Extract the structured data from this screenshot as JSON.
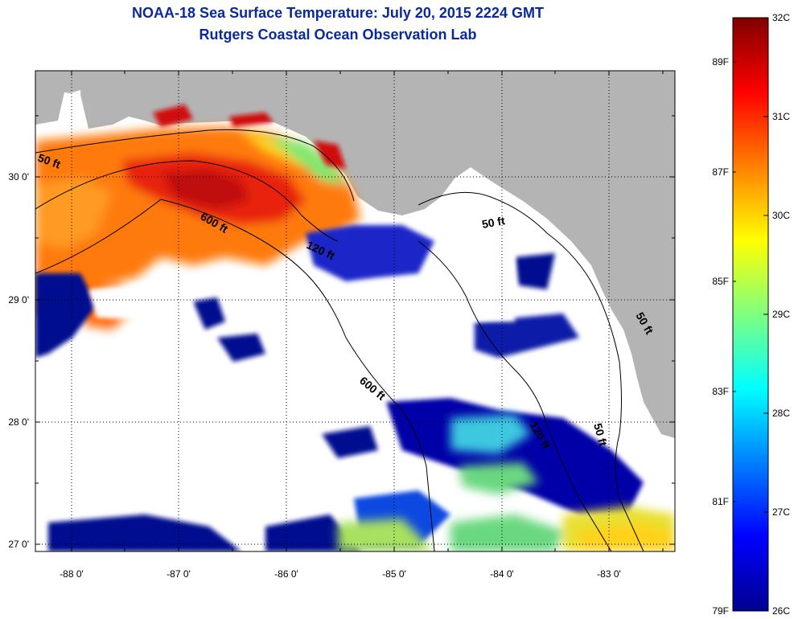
{
  "title": {
    "line1": "NOAA-18 Sea Surface Temperature:  July 20, 2015 2224 GMT",
    "line2": "Rutgers Coastal Ocean Observation Lab"
  },
  "map": {
    "lon_min": -88.35,
    "lon_max": -82.4,
    "lat_min": 26.95,
    "lat_max": 30.85,
    "x_ticks": [
      "-88 0'",
      "-87 0'",
      "-86 0'",
      "-85 0'",
      "-84 0'",
      "-83 0'"
    ],
    "y_ticks": [
      "30 0'",
      "29 0'",
      "28 0'",
      "27 0'"
    ],
    "land_color": "#b4b4b4",
    "cloud_color": "#ffffff",
    "contour_labels": [
      "50 ft",
      "600 ft",
      "120 ft",
      "600 ft",
      "50 ft",
      "120 ft",
      "50 ft",
      "50 ft"
    ]
  },
  "colorbar": {
    "celsius_labels": [
      "32C",
      "31C",
      "30C",
      "29C",
      "28C",
      "27C",
      "26C"
    ],
    "fahrenheit_labels": [
      "89F",
      "87F",
      "85F",
      "83F",
      "81F",
      "79F"
    ],
    "min_c": 26,
    "max_c": 32,
    "colormap": "jet"
  }
}
